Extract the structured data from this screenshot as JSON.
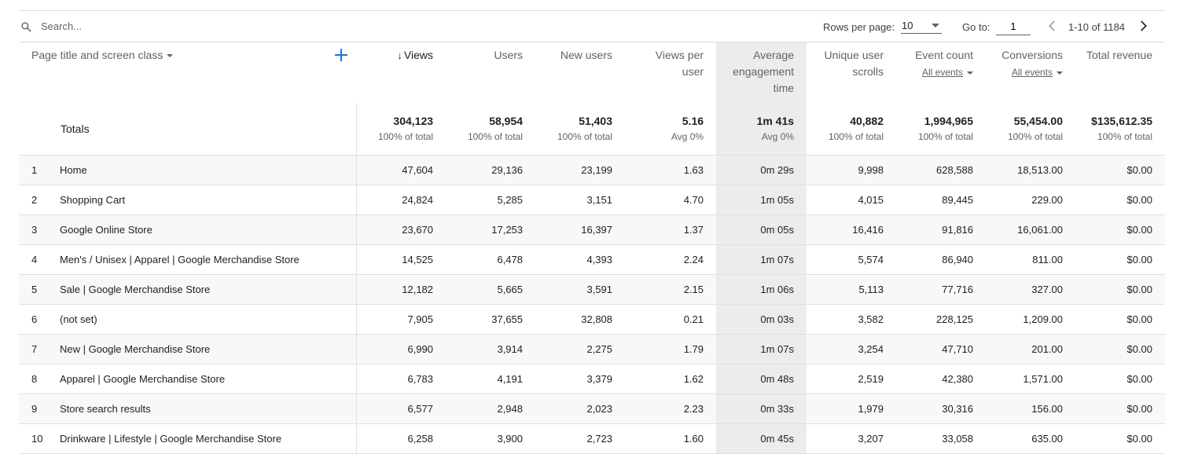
{
  "toolbar": {
    "search_placeholder": "Search...",
    "rows_per_page_label": "Rows per page:",
    "rows_per_page_value": "10",
    "goto_label": "Go to:",
    "goto_value": "1",
    "range": "1-10 of 1184"
  },
  "header": {
    "dimension": "Page title and screen class",
    "columns": [
      {
        "label": "Views",
        "sorted": true
      },
      {
        "label": "Users"
      },
      {
        "label": "New users"
      },
      {
        "label": "Views per user"
      },
      {
        "label": "Average engagement time"
      },
      {
        "label": "Unique user scrolls"
      },
      {
        "label": "Event count",
        "sub": "All events"
      },
      {
        "label": "Conversions",
        "sub": "All events"
      },
      {
        "label": "Total revenue"
      }
    ]
  },
  "totals": {
    "label": "Totals",
    "values": [
      "304,123",
      "58,954",
      "51,403",
      "5.16",
      "1m 41s",
      "40,882",
      "1,994,965",
      "55,454.00",
      "$135,612.35"
    ],
    "subs": [
      "100% of total",
      "100% of total",
      "100% of total",
      "Avg 0%",
      "Avg 0%",
      "100% of total",
      "100% of total",
      "100% of total",
      "100% of total"
    ]
  },
  "rows": [
    {
      "idx": "1",
      "name": "Home",
      "values": [
        "47,604",
        "29,136",
        "23,199",
        "1.63",
        "0m 29s",
        "9,998",
        "628,588",
        "18,513.00",
        "$0.00"
      ]
    },
    {
      "idx": "2",
      "name": "Shopping Cart",
      "values": [
        "24,824",
        "5,285",
        "3,151",
        "4.70",
        "1m 05s",
        "4,015",
        "89,445",
        "229.00",
        "$0.00"
      ]
    },
    {
      "idx": "3",
      "name": "Google Online Store",
      "values": [
        "23,670",
        "17,253",
        "16,397",
        "1.37",
        "0m 05s",
        "16,416",
        "91,816",
        "16,061.00",
        "$0.00"
      ]
    },
    {
      "idx": "4",
      "name": "Men's / Unisex | Apparel | Google Merchandise Store",
      "values": [
        "14,525",
        "6,478",
        "4,393",
        "2.24",
        "1m 07s",
        "5,574",
        "86,940",
        "811.00",
        "$0.00"
      ]
    },
    {
      "idx": "5",
      "name": "Sale | Google Merchandise Store",
      "values": [
        "12,182",
        "5,665",
        "3,591",
        "2.15",
        "1m 06s",
        "5,113",
        "77,716",
        "327.00",
        "$0.00"
      ]
    },
    {
      "idx": "6",
      "name": "(not set)",
      "values": [
        "7,905",
        "37,655",
        "32,808",
        "0.21",
        "0m 03s",
        "3,582",
        "228,125",
        "1,209.00",
        "$0.00"
      ]
    },
    {
      "idx": "7",
      "name": "New | Google Merchandise Store",
      "values": [
        "6,990",
        "3,914",
        "2,275",
        "1.79",
        "1m 07s",
        "3,254",
        "47,710",
        "201.00",
        "$0.00"
      ]
    },
    {
      "idx": "8",
      "name": "Apparel | Google Merchandise Store",
      "values": [
        "6,783",
        "4,191",
        "3,379",
        "1.62",
        "0m 48s",
        "2,519",
        "42,380",
        "1,571.00",
        "$0.00"
      ]
    },
    {
      "idx": "9",
      "name": "Store search results",
      "values": [
        "6,577",
        "2,948",
        "2,023",
        "2.23",
        "0m 33s",
        "1,979",
        "30,316",
        "156.00",
        "$0.00"
      ]
    },
    {
      "idx": "10",
      "name": "Drinkware | Lifestyle | Google Merchandise Store",
      "values": [
        "6,258",
        "3,900",
        "2,723",
        "1.60",
        "0m 45s",
        "3,207",
        "33,058",
        "635.00",
        "$0.00"
      ]
    }
  ],
  "colors": {
    "accent": "#1a73e8",
    "highlight_column": "#ececec"
  }
}
